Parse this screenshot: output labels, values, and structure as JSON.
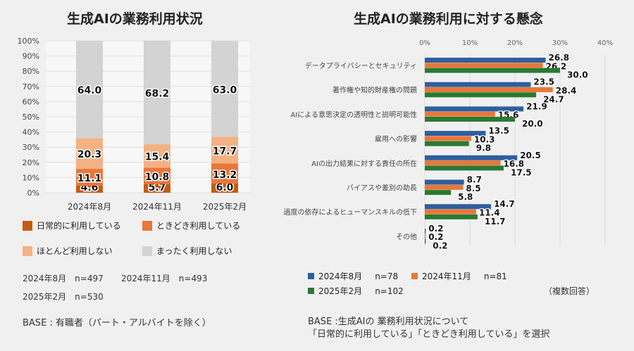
{
  "chart_data": [
    {
      "type": "bar",
      "stacked": true,
      "title": "生成AIの業務利用状況",
      "categories": [
        "2024年8月",
        "2024年11月",
        "2025年2月"
      ],
      "series": [
        {
          "name": "日常的に利用している",
          "values": [
            4.6,
            5.7,
            6.0
          ],
          "color": "#c55a11"
        },
        {
          "name": "ときどき利用している",
          "values": [
            11.1,
            10.8,
            13.2
          ],
          "color": "#e8773a"
        },
        {
          "name": "ほとんど利用しない",
          "values": [
            20.3,
            15.4,
            17.7
          ],
          "color": "#f4b183"
        },
        {
          "name": "まったく利用しない",
          "values": [
            64.0,
            68.2,
            63.0
          ],
          "color": "#d3d3d3"
        }
      ],
      "yticks": [
        "0%",
        "10%",
        "20%",
        "30%",
        "40%",
        "50%",
        "60%",
        "70%",
        "80%",
        "90%",
        "100%"
      ],
      "ylim": [
        0,
        100
      ],
      "grid": true
    },
    {
      "type": "bar",
      "orientation": "horizontal",
      "title": "生成AIの業務利用に対する懸念",
      "categories": [
        "データプライバシーとセキュリティ",
        "著作権や知的財産権の問題",
        "AIによる意思決定の透明性と説明可能性",
        "雇用への影響",
        "AIの出力結果に対する責任の所在",
        "バイアスや差別の助長",
        "過度の依存によるヒューマンスキルの低下",
        "その他"
      ],
      "series": [
        {
          "name": "2024年8月",
          "n": "n=78",
          "values": [
            26.8,
            23.5,
            21.9,
            13.5,
            20.5,
            8.7,
            14.7,
            0.2
          ],
          "color": "#2e5f9e"
        },
        {
          "name": "2024年11月",
          "n": "n=81",
          "values": [
            26.2,
            28.4,
            15.6,
            10.3,
            16.8,
            8.5,
            11.4,
            0.2
          ],
          "color": "#e8773a"
        },
        {
          "name": "2025年2月",
          "n": "n=102",
          "values": [
            30.0,
            24.7,
            20.0,
            9.8,
            17.5,
            5.8,
            11.7,
            0.2
          ],
          "color": "#2a7a32"
        }
      ],
      "xticks": [
        "0%",
        "10%",
        "20%",
        "30%",
        "40%"
      ],
      "xlim": [
        0,
        40
      ],
      "grid": true
    }
  ],
  "left": {
    "samples": [
      "2024年8月　n=497",
      "2024年11月　n=493",
      "2025年2月　n=530"
    ],
    "base": "BASE : 有職者（パート・アルバイトを除く）"
  },
  "right": {
    "note": "（複数回答）",
    "base1": "BASE :生成AIの 業務利用状況について",
    "base2": "「日常的に利用している」「ときどき利用している」を選択"
  }
}
